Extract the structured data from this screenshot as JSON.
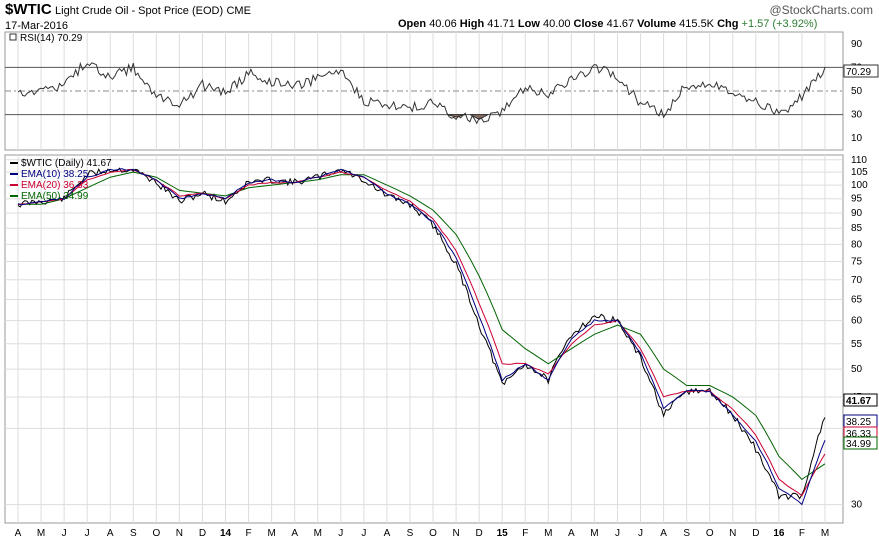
{
  "header": {
    "symbol": "$WTIC",
    "description": "Light Crude Oil - Spot Price (EOD)",
    "exchange": "CME",
    "date": "17-Mar-2016",
    "open_label": "Open",
    "open": "40.06",
    "high_label": "High",
    "high": "41.71",
    "low_label": "Low",
    "low": "40.00",
    "close_label": "Close",
    "close": "41.67",
    "volume_label": "Volume",
    "volume": "415.5K",
    "chg_label": "Chg",
    "chg": "+1.57 (+3.92%)",
    "brand": "@StockCharts.com",
    "chg_color": "#2e7d32"
  },
  "rsi_panel": {
    "label": "RSI(14) 70.29",
    "current_value": "70.29",
    "ticks": [
      "90",
      "70",
      "50",
      "30",
      "10"
    ]
  },
  "price_panel": {
    "legend": [
      {
        "label": "$WTIC (Daily) 41.67",
        "color": "#000000"
      },
      {
        "label": "EMA(10) 38.25",
        "color": "#000080"
      },
      {
        "label": "EMA(20) 36.33",
        "color": "#cc0033"
      },
      {
        "label": "EMA(50) 34.99",
        "color": "#006400"
      }
    ],
    "ticks": [
      "110",
      "105",
      "100",
      "95",
      "90",
      "85",
      "80",
      "75",
      "70",
      "65",
      "60",
      "55",
      "50",
      "45",
      "40",
      "30"
    ],
    "value_labels": [
      "41.67",
      "38.25",
      "36.33",
      "34.99"
    ]
  },
  "x_axis": {
    "labels": [
      "A",
      "M",
      "J",
      "J",
      "A",
      "S",
      "O",
      "N",
      "D",
      "14",
      "F",
      "M",
      "A",
      "M",
      "J",
      "J",
      "A",
      "S",
      "O",
      "N",
      "D",
      "15",
      "F",
      "M",
      "A",
      "M",
      "J",
      "J",
      "A",
      "S",
      "O",
      "N",
      "D",
      "16",
      "F",
      "M"
    ]
  },
  "chart_data": {
    "type": "line",
    "title": "$WTIC Light Crude Oil - Spot Price (EOD)",
    "x": [
      "2013-04",
      "2013-05",
      "2013-06",
      "2013-07",
      "2013-08",
      "2013-09",
      "2013-10",
      "2013-11",
      "2013-12",
      "2014-01",
      "2014-02",
      "2014-03",
      "2014-04",
      "2014-05",
      "2014-06",
      "2014-07",
      "2014-08",
      "2014-09",
      "2014-10",
      "2014-11",
      "2014-12",
      "2015-01",
      "2015-02",
      "2015-03",
      "2015-04",
      "2015-05",
      "2015-06",
      "2015-07",
      "2015-08",
      "2015-09",
      "2015-10",
      "2015-11",
      "2015-12",
      "2016-01",
      "2016-02",
      "2016-03"
    ],
    "series": [
      {
        "name": "$WTIC (Daily)",
        "values": [
          93,
          94,
          95,
          104,
          106,
          106,
          101,
          94,
          97,
          94,
          101,
          102,
          101,
          103,
          106,
          102,
          96,
          93,
          86,
          74,
          59,
          47,
          51,
          48,
          57,
          61,
          60,
          52,
          42,
          46,
          46,
          42,
          37,
          31,
          31,
          41.67
        ]
      },
      {
        "name": "EMA(10)",
        "values": [
          93,
          94,
          95,
          103,
          106,
          106,
          102,
          95,
          97,
          95,
          101,
          102,
          101,
          103,
          106,
          103,
          97,
          93,
          87,
          76,
          61,
          48,
          51,
          48,
          56,
          60,
          60,
          53,
          43,
          46,
          46,
          42,
          38,
          32,
          30,
          38.25
        ]
      },
      {
        "name": "EMA(20)",
        "values": [
          93,
          94,
          95,
          102,
          105,
          106,
          102,
          96,
          97,
          95,
          100,
          101,
          101,
          103,
          105,
          103,
          98,
          94,
          88,
          78,
          64,
          51,
          51,
          49,
          55,
          59,
          60,
          54,
          45,
          46,
          46,
          43,
          39,
          33,
          31,
          36.33
        ]
      },
      {
        "name": "EMA(50)",
        "values": [
          93,
          93,
          95,
          99,
          103,
          105,
          103,
          98,
          97,
          96,
          99,
          100,
          101,
          102,
          104,
          104,
          100,
          96,
          91,
          83,
          71,
          58,
          54,
          51,
          54,
          57,
          59,
          57,
          50,
          47,
          47,
          45,
          42,
          36,
          33,
          34.99
        ]
      },
      {
        "name": "RSI(14)",
        "values": [
          49,
          52,
          55,
          75,
          62,
          70,
          45,
          38,
          55,
          48,
          65,
          58,
          55,
          60,
          68,
          42,
          38,
          36,
          40,
          28,
          26,
          32,
          52,
          48,
          60,
          70,
          62,
          40,
          30,
          55,
          57,
          50,
          42,
          30,
          45,
          70.29
        ]
      }
    ],
    "ylim": [
      28,
      112
    ],
    "y_scale": "log",
    "rsi_ylim": [
      0,
      100
    ],
    "rsi_levels": [
      70,
      50,
      30
    ],
    "grid": true,
    "legend": "top-left"
  }
}
